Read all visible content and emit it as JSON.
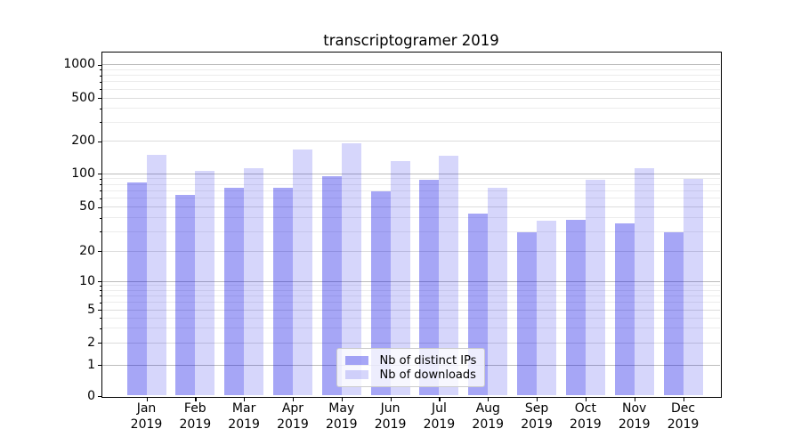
{
  "chart_data": {
    "type": "bar",
    "title": "transcriptogramer 2019",
    "categories": [
      "Jan 2019",
      "Feb 2019",
      "Mar 2019",
      "Apr 2019",
      "May 2019",
      "Jun 2019",
      "Jul 2019",
      "Aug 2019",
      "Sep 2019",
      "Oct 2019",
      "Nov 2019",
      "Dec 2019"
    ],
    "series": [
      {
        "name": "Nb of distinct IPs",
        "color": "rgba(0,0,230,0.35)",
        "values": [
          83,
          64,
          74,
          74,
          93,
          68,
          87,
          43,
          29,
          38,
          35,
          29
        ]
      },
      {
        "name": "Nb of downloads",
        "color": "rgba(0,0,230,0.16)",
        "values": [
          148,
          104,
          112,
          164,
          188,
          130,
          144,
          74,
          37,
          87,
          111,
          88
        ]
      }
    ],
    "y_axis": {
      "scale": "symlog",
      "ticks": [
        0,
        1,
        2,
        5,
        10,
        20,
        50,
        100,
        200,
        500,
        1000
      ],
      "ylim": [
        0,
        1300
      ]
    },
    "x_axis": {
      "label": ""
    },
    "legend": {
      "position": "lower center"
    },
    "grid": true
  }
}
